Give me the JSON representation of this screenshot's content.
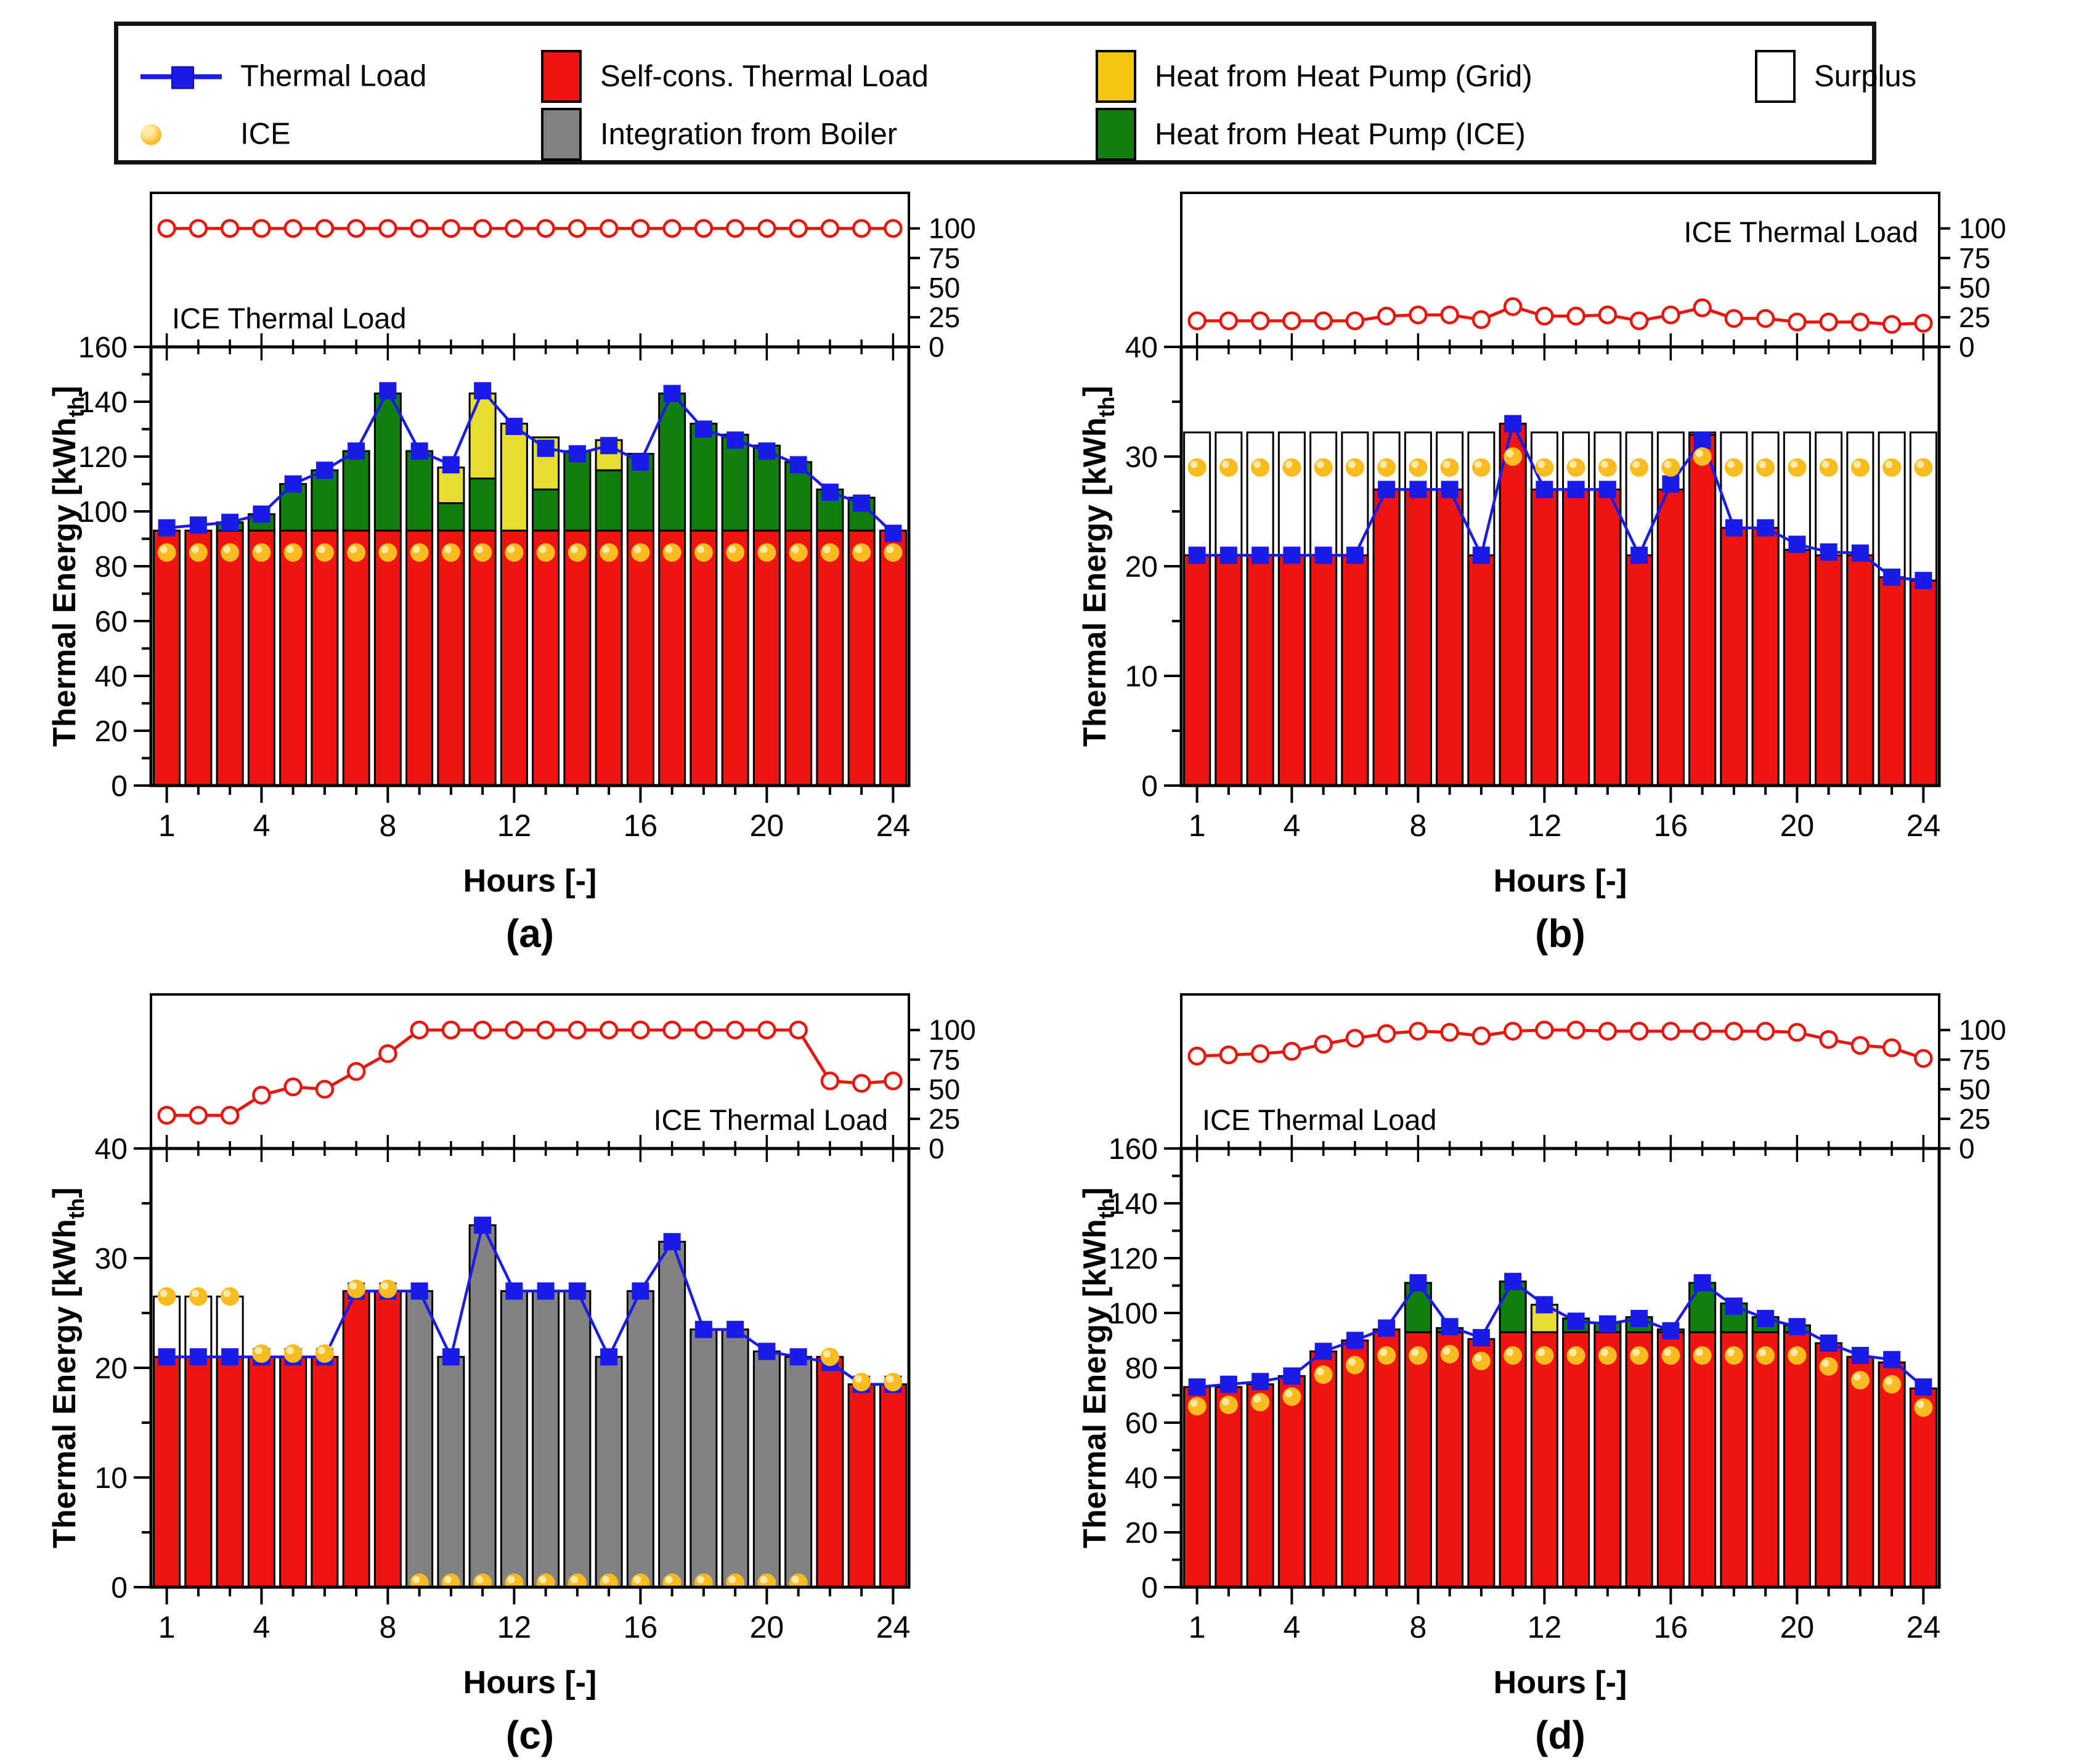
{
  "legend": {
    "items": [
      {
        "id": "thermal-load",
        "label": "Thermal Load",
        "marker": "blue-line-square",
        "color": "#1B1BE8"
      },
      {
        "id": "ice",
        "label": "ICE",
        "marker": "amber-dot",
        "color": "#F8BB20"
      },
      {
        "id": "self-cons-thermal-load",
        "label": "Self-cons. Thermal Load",
        "marker": "swatch",
        "color": "#EE1411"
      },
      {
        "id": "integration-from-boiler",
        "label": "Integration from Boiler",
        "marker": "swatch",
        "color": "#828282"
      },
      {
        "id": "heat-pump-grid",
        "label": "Heat from Heat Pump (Grid)",
        "marker": "swatch",
        "color": "#F4C313"
      },
      {
        "id": "heat-pump-ice",
        "label": "Heat from Heat Pump (ICE)",
        "marker": "swatch",
        "color": "#107F10"
      },
      {
        "id": "surplus",
        "label": "Surplus",
        "marker": "swatch",
        "color": "#FFFFFF"
      }
    ]
  },
  "colors": {
    "thermal_load": "#1B1BE8",
    "ice_line": "#E8170E",
    "self_cons": "#EE1411",
    "boiler": "#828282",
    "hp_grid": "#E7DD30",
    "hp_ice": "#107F10",
    "surplus": "#FFFFFF",
    "ice_dot": "#F8BB20",
    "ice_dot_hi": "#FFE9A4",
    "axis": "#000000"
  },
  "hours": [
    1,
    2,
    3,
    4,
    5,
    6,
    7,
    8,
    9,
    10,
    11,
    12,
    13,
    14,
    15,
    16,
    17,
    18,
    19,
    20,
    21,
    22,
    23,
    24
  ],
  "chart_data": [
    {
      "id": "a",
      "caption": "(a)",
      "type": "bar",
      "xlabel": "Hours [-]",
      "xticks": [
        1,
        4,
        8,
        12,
        16,
        20,
        24
      ],
      "ylabel": "Thermal Energy [kWh_th]",
      "ylabel_main": "Thermal Energy [kWh",
      "ylabel_sub": "th",
      "ylabel_close": "]",
      "ymax": 160,
      "ymajor": 20,
      "yminor": 10,
      "top_panel": {
        "label": "ICE Thermal Load",
        "label_pos": "bottom-left",
        "ymax": 130,
        "yticks": [
          0,
          25,
          50,
          75,
          100
        ],
        "values": [
          100,
          100,
          100,
          100,
          100,
          100,
          100,
          100,
          100,
          100,
          100,
          100,
          100,
          100,
          100,
          100,
          100,
          100,
          100,
          100,
          100,
          100,
          100,
          100
        ]
      },
      "series": {
        "thermal_load": [
          94,
          95,
          96,
          99,
          110,
          115,
          122,
          144,
          122,
          117,
          144,
          131,
          123,
          121,
          124,
          118,
          143,
          130,
          126,
          122,
          117,
          107,
          103,
          92
        ],
        "self_cons": [
          93,
          93,
          93,
          93,
          93,
          93,
          93,
          93,
          93,
          93,
          93,
          93,
          93,
          93,
          93,
          93,
          93,
          93,
          93,
          93,
          93,
          93,
          93,
          93
        ],
        "boiler": null,
        "hp_grid": [
          0,
          0,
          0,
          0,
          0,
          0,
          0,
          0,
          0,
          13,
          31,
          39,
          19,
          0,
          11,
          0,
          0,
          0,
          0,
          0,
          0,
          0,
          0,
          0
        ],
        "hp_ice": [
          0,
          0,
          3,
          6,
          17,
          22,
          29,
          50,
          29,
          10,
          19,
          0,
          15,
          29,
          22,
          28,
          50,
          39,
          35,
          31,
          25,
          15,
          12,
          0
        ],
        "surplus_top": null,
        "ice_dots": [
          85,
          85,
          85,
          85,
          85,
          85,
          85,
          85,
          85,
          85,
          85,
          85,
          85,
          85,
          85,
          85,
          85,
          85,
          85,
          85,
          85,
          85,
          85,
          85
        ]
      }
    },
    {
      "id": "b",
      "caption": "(b)",
      "type": "bar",
      "xlabel": "Hours [-]",
      "xticks": [
        1,
        4,
        8,
        12,
        16,
        20,
        24
      ],
      "ylabel": "Thermal Energy [kWh_th]",
      "ylabel_main": "Thermal Energy [kWh",
      "ylabel_sub": "th",
      "ylabel_close": "]",
      "ymax": 40,
      "ymajor": 10,
      "yminor": 5,
      "top_panel": {
        "label": "ICE Thermal Load",
        "label_pos": "top-right",
        "ymax": 130,
        "yticks": [
          0,
          25,
          50,
          75,
          100
        ],
        "values": [
          22,
          22,
          22,
          22,
          22,
          22,
          26,
          27,
          27,
          23,
          34,
          26,
          26,
          27,
          22,
          27,
          33,
          24,
          24,
          21,
          21,
          21,
          19,
          20
        ]
      },
      "series": {
        "thermal_load": [
          21,
          21,
          21,
          21,
          21,
          21,
          27,
          27,
          27,
          21,
          33,
          27,
          27,
          27,
          21,
          27.5,
          31.5,
          23.5,
          23.5,
          22,
          21.3,
          21.2,
          19,
          18.7
        ],
        "self_cons": [
          21,
          21,
          21,
          21,
          21,
          21,
          27,
          27,
          27,
          21,
          33,
          27,
          27,
          27,
          21,
          27,
          32,
          23.5,
          23.5,
          21.5,
          21,
          21,
          19,
          18.7
        ],
        "boiler": null,
        "hp_grid": null,
        "hp_ice": null,
        "surplus_top": [
          32.2,
          32.2,
          32.2,
          32.2,
          32.2,
          32.2,
          32.2,
          32.2,
          32.2,
          32.2,
          32.2,
          32.2,
          32.2,
          32.2,
          32.2,
          32.2,
          32.2,
          32.2,
          32.2,
          32.2,
          32.2,
          32.2,
          32.2,
          32.2
        ],
        "ice_dots": [
          29,
          29,
          29,
          29,
          29,
          29,
          29,
          29,
          29,
          29,
          30,
          29,
          29,
          29,
          29,
          29,
          30,
          29,
          29,
          29,
          29,
          29,
          29,
          29
        ]
      }
    },
    {
      "id": "c",
      "caption": "(c)",
      "type": "bar",
      "xlabel": "Hours [-]",
      "xticks": [
        1,
        4,
        8,
        12,
        16,
        20,
        24
      ],
      "ylabel": "Thermal Energy [kWh_th]",
      "ylabel_main": "Thermal Energy [kWh",
      "ylabel_sub": "th",
      "ylabel_close": "]",
      "ymax": 40,
      "ymajor": 10,
      "yminor": 5,
      "top_panel": {
        "label": "ICE Thermal Load",
        "label_pos": "bottom-right",
        "ymax": 130,
        "yticks": [
          0,
          25,
          50,
          75,
          100
        ],
        "values": [
          28,
          28,
          28,
          45,
          52,
          50,
          65,
          80,
          100,
          100,
          100,
          100,
          100,
          100,
          100,
          100,
          100,
          100,
          100,
          100,
          100,
          57,
          55,
          57
        ]
      },
      "series": {
        "thermal_load": [
          21,
          21,
          21,
          21,
          21,
          21,
          27,
          27,
          27,
          21,
          33,
          27,
          27,
          27,
          21,
          27,
          31.5,
          23.5,
          23.5,
          21.5,
          21,
          20.5,
          18.5,
          18.5
        ],
        "self_cons": [
          21,
          21,
          21,
          21,
          21,
          21,
          27,
          27,
          0,
          0,
          0,
          0,
          0,
          0,
          0,
          0,
          0,
          0,
          0,
          0,
          0,
          21,
          18.5,
          18.5
        ],
        "boiler": [
          0,
          0,
          0,
          0,
          0,
          0,
          0,
          0,
          27,
          21,
          33,
          27,
          27,
          27,
          21,
          27,
          31.5,
          23.5,
          23.5,
          21.5,
          21,
          0,
          0,
          0
        ],
        "hp_grid": null,
        "hp_ice": null,
        "surplus_top": [
          26.5,
          26.5,
          26.5,
          null,
          null,
          null,
          null,
          null,
          null,
          null,
          null,
          null,
          null,
          null,
          null,
          null,
          null,
          null,
          null,
          null,
          null,
          null,
          null,
          null
        ],
        "ice_dots": [
          26.5,
          26.5,
          26.5,
          21.3,
          21.3,
          21.3,
          27.2,
          27.2,
          0.4,
          0.4,
          0.4,
          0.4,
          0.4,
          0.4,
          0.4,
          0.4,
          0.4,
          0.4,
          0.4,
          0.4,
          0.4,
          21,
          18.7,
          18.7
        ]
      }
    },
    {
      "id": "d",
      "caption": "(d)",
      "type": "bar",
      "xlabel": "Hours [-]",
      "xticks": [
        1,
        4,
        8,
        12,
        16,
        20,
        24
      ],
      "ylabel": "Thermal Energy [kWh_th]",
      "ylabel_main": "Thermal Energy [kWh",
      "ylabel_sub": "th",
      "ylabel_close": "]",
      "ymax": 160,
      "ymajor": 20,
      "yminor": 10,
      "top_panel": {
        "label": "ICE Thermal Load",
        "label_pos": "bottom-left",
        "ymax": 130,
        "yticks": [
          0,
          25,
          50,
          75,
          100
        ],
        "values": [
          78,
          79,
          80,
          82,
          88,
          93,
          97,
          99,
          98,
          95,
          99,
          100,
          100,
          99,
          99,
          99,
          99,
          99,
          99,
          98,
          92,
          87,
          85,
          76
        ]
      },
      "series": {
        "thermal_load": [
          73,
          74,
          75,
          77,
          86,
          90,
          94.5,
          111,
          95,
          91,
          111.5,
          103,
          97,
          96,
          98,
          93.5,
          111,
          102.5,
          98,
          95,
          89,
          84.5,
          83,
          73
        ],
        "self_cons": [
          73,
          73,
          74,
          77,
          86,
          90,
          94,
          93,
          93,
          90.5,
          93,
          93,
          93,
          93,
          93,
          93,
          93,
          93,
          93,
          93,
          89,
          84,
          82,
          72.5
        ],
        "boiler": null,
        "hp_grid": [
          0,
          0,
          0,
          0,
          0,
          0,
          0,
          0,
          0,
          0,
          0,
          10,
          0,
          0,
          0,
          0,
          0,
          0,
          0,
          0,
          0,
          0,
          0,
          0
        ],
        "hp_ice": [
          0,
          0,
          0,
          0,
          0,
          0,
          0,
          18,
          1.5,
          0,
          18.5,
          0,
          5,
          3.5,
          5.5,
          1,
          18,
          10.5,
          5.5,
          2.5,
          0,
          0,
          0,
          0
        ],
        "surplus_top": null,
        "ice_dots": [
          66,
          66.5,
          67.5,
          69.5,
          77.5,
          81,
          84.5,
          84.5,
          85,
          82.5,
          84.5,
          84.5,
          84.5,
          84.5,
          84.5,
          84.5,
          84.5,
          84.5,
          84.5,
          84.5,
          80.5,
          75.5,
          74,
          65.5
        ]
      }
    }
  ]
}
